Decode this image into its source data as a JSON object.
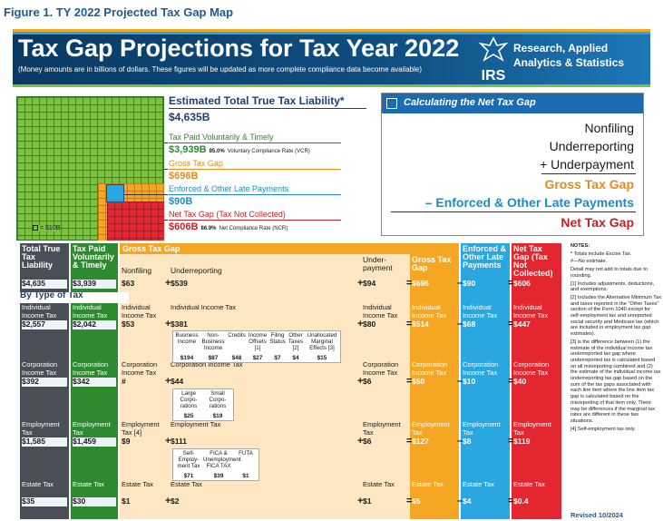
{
  "figure_title": "Figure 1. TY 2022 Projected Tax Gap Map",
  "banner": {
    "title": "Tax Gap Projections for Tax Year 2022",
    "subtitle": "(Money amounts are in billions of dollars. These figures will be updated as more complete compliance data become available)",
    "logo_text": "IRS",
    "org_line1": "Research, Applied",
    "org_line2": "Analytics & Statistics"
  },
  "colors": {
    "navy": "#1d3f73",
    "green": "#2e8a2e",
    "lightgreen": "#7bc043",
    "orange": "#f5a623",
    "blue": "#2aa6e0",
    "red": "#e3262f",
    "gray": "#4a4f57"
  },
  "summary": {
    "grid_legend": "= $10B",
    "etl_title": "Estimated Total True Tax Liability*",
    "etl_value": "$4,635B",
    "tpvt_label": "Tax Paid Voluntarily & Timely",
    "tpvt_value": "$3,939B",
    "tpvt_rate": "85.0%",
    "tpvt_rate_text": "Voluntary Compliance Rate (VCR)",
    "gtg_label": "Gross Tax Gap",
    "gtg_value": "$696B",
    "eolp_label": "Enforced & Other Late Payments",
    "eolp_value": "$90B",
    "ntg_label": "Net Tax Gap (Tax Not Collected)",
    "ntg_value": "$606B",
    "ntg_rate": "86.9%",
    "ntg_rate_text": "Net Compliance Rate (NCR)"
  },
  "calc": {
    "title": "Calculating the Net Tax Gap",
    "line1": "Nonfiling",
    "line2": "Underreporting",
    "line3": "+ Underpayment",
    "line4": "Gross Tax Gap",
    "line5": "– Enforced & Other Late Payments",
    "line6": "Net Tax Gap"
  },
  "table": {
    "headers": {
      "ettl": "Total True Tax Liability",
      "tpvt": "Tax Paid Voluntarily & Timely",
      "gtg_band": "Gross Tax Gap",
      "nonfiling": "Nonfiling",
      "underreporting": "Underreporting",
      "underpayment": "Under-payment",
      "gtg": "Gross Tax Gap",
      "eolp": "Enforced & Other Late Payments",
      "ntg": "Net Tax Gap (Tax Not Collected)"
    },
    "totals": {
      "ettl": "$4,635",
      "tpvt": "$3,939",
      "nonfiling": "$63",
      "underreporting": "$539",
      "underpayment": "$94",
      "gtg": "$696",
      "eolp": "$90",
      "ntg": "$606"
    },
    "by_type": "By Type of Tax",
    "rows": [
      {
        "label": "Individual Income Tax",
        "ettl": "$2,557",
        "tpvt": "$2,042",
        "nonfiling": "$53",
        "underreporting": "$381",
        "underpayment": "$80",
        "gtg": "$514",
        "eolp": "$68",
        "ntg": "$447",
        "sub": [
          {
            "label": "Business Income",
            "value": "$194"
          },
          {
            "label": "Non-Business Income",
            "value": "$87"
          },
          {
            "label": "Credits",
            "value": "$48"
          },
          {
            "label": "Income Offsets [1]",
            "value": "$27"
          },
          {
            "label": "Filing Status",
            "value": "$7"
          },
          {
            "label": "Other Taxes [2]",
            "value": "$4"
          },
          {
            "label": "Unallocated Marginal Effects [3]",
            "value": "$15"
          }
        ]
      },
      {
        "label": "Corporation Income Tax",
        "ettl": "$392",
        "tpvt": "$342",
        "nonfiling": "#",
        "underreporting": "$44",
        "underpayment": "$6",
        "gtg": "$50",
        "eolp": "$10",
        "ntg": "$40",
        "sub": [
          {
            "label": "Large Corpo-rations",
            "value": "$25"
          },
          {
            "label": "Small Corpo-rations",
            "value": "$19"
          }
        ]
      },
      {
        "label": "Employment Tax",
        "nonfiling_label": "Employment Tax [4]",
        "ettl": "$1,585",
        "tpvt": "$1,459",
        "nonfiling": "$9",
        "underreporting": "$111",
        "underpayment": "$6",
        "gtg": "$127",
        "eolp": "$8",
        "ntg": "$119",
        "sub": [
          {
            "label": "Self-Employ-ment Tax",
            "value": "$71"
          },
          {
            "label": "FICA & Unemployment FICA TAX",
            "value": "$39"
          },
          {
            "label": "FUTA",
            "value": "$1"
          }
        ]
      },
      {
        "label": "Estate Tax",
        "ettl": "$35",
        "tpvt": "$30",
        "nonfiling": "$1",
        "underreporting": "$2",
        "underpayment": "$1",
        "gtg": "$5",
        "eolp": "$4",
        "ntg": "$0.4",
        "sub": []
      }
    ]
  },
  "notes": {
    "title": "NOTES:",
    "items": [
      "* Totals include Excise Tax.",
      "#—No estimate.",
      "Detail may not add to totals due to rounding.",
      "[1] Includes adjustments, deductions, and exemptions.",
      "[2] Includes the Alternative Minimum Tax and taxes reported in the \"Other Taxes\" section of the Form 1040 except for self-employment tax and unreported social security and Medicare tax (which are included in employment tax gap estimates).",
      "[3] is the difference between (1) the estimate of the individual income tax underreported tax gap where underreported tax is calculated based on all misreporting combined and (2) the estimate of the individual income tax underreporting tax gap based on the sum of the tax gaps associated with each line item where the line item tax gap is calculated based on the misreporting of that item only. There may be differences if the marginal tax rates are different in these two situations.",
      "[4] Self-employment tax only."
    ],
    "revised": "Revised 10/2024"
  },
  "chart_data": {
    "type": "table",
    "title": "Tax Gap Projections for Tax Year 2022",
    "units": "billions of dollars",
    "columns": [
      "Estimated Total True Tax Liability",
      "Tax Paid Voluntarily & Timely",
      "Nonfiling",
      "Underreporting",
      "Underpayment",
      "Gross Tax Gap",
      "Enforced & Other Late Payments",
      "Net Tax Gap"
    ],
    "rows": [
      {
        "name": "Total",
        "values": [
          4635,
          3939,
          63,
          539,
          94,
          696,
          90,
          606
        ]
      },
      {
        "name": "Individual Income Tax",
        "values": [
          2557,
          2042,
          53,
          381,
          80,
          514,
          68,
          447
        ]
      },
      {
        "name": "Corporation Income Tax",
        "values": [
          392,
          342,
          null,
          44,
          6,
          50,
          10,
          40
        ]
      },
      {
        "name": "Employment Tax",
        "values": [
          1585,
          1459,
          9,
          111,
          6,
          127,
          8,
          119
        ]
      },
      {
        "name": "Estate Tax",
        "values": [
          35,
          30,
          1,
          2,
          1,
          5,
          4,
          0.4
        ]
      }
    ],
    "rates": {
      "VCR": 85.0,
      "NCR": 86.9
    }
  }
}
